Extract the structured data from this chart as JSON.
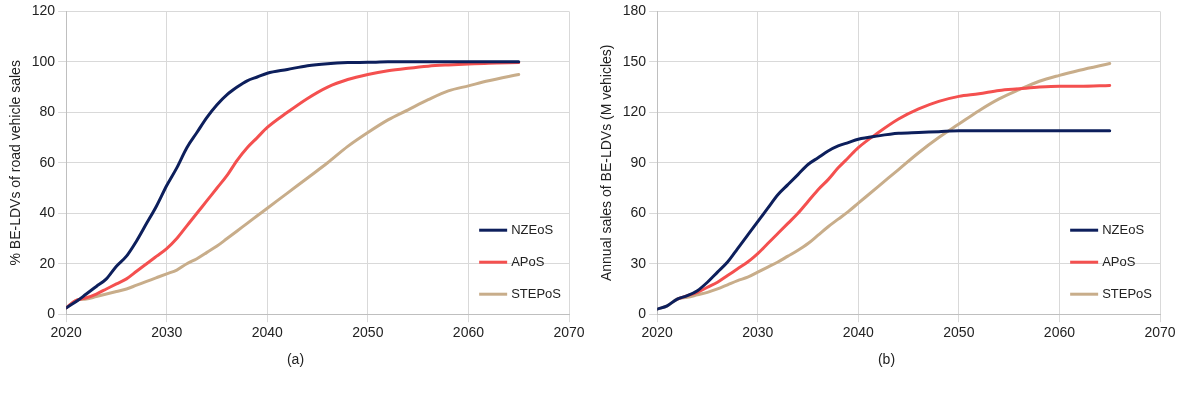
{
  "chart_data": [
    {
      "type": "line",
      "ylabel": "% BE-LDVs of road vehicle sales",
      "annotations": [
        "(a)"
      ],
      "x": [
        2020,
        2021,
        2022,
        2023,
        2024,
        2025,
        2026,
        2027,
        2028,
        2029,
        2030,
        2031,
        2032,
        2033,
        2034,
        2035,
        2036,
        2037,
        2038,
        2039,
        2040,
        2042,
        2044,
        2046,
        2048,
        2050,
        2052,
        2054,
        2056,
        2058,
        2060,
        2062,
        2065
      ],
      "series": [
        {
          "name": "NZEoS",
          "color": "#0d1f5c",
          "values": [
            2.5,
            5,
            8,
            11,
            14,
            19,
            23,
            29,
            36,
            43,
            51,
            58,
            66,
            72,
            78,
            83,
            87,
            90,
            92.5,
            94,
            95.5,
            97,
            98.5,
            99.3,
            99.7,
            99.8,
            100,
            100,
            100,
            100,
            100,
            100,
            100
          ]
        },
        {
          "name": "APoS",
          "color": "#f4504f",
          "values": [
            2.5,
            5.5,
            6.5,
            8,
            10,
            12,
            14,
            17,
            20,
            23,
            26,
            30,
            35,
            40,
            45,
            50,
            55,
            61,
            66,
            70,
            74,
            80,
            85.5,
            90,
            93,
            95,
            96.5,
            97.5,
            98.3,
            98.8,
            99.2,
            99.5,
            99.7
          ]
        },
        {
          "name": "STEPoS",
          "color": "#c8ad8a",
          "values": [
            2.5,
            5.5,
            6,
            7,
            8,
            9,
            10,
            11.5,
            13,
            14.5,
            16,
            17.5,
            20,
            22,
            24.5,
            27,
            30,
            33,
            36,
            39,
            42,
            48,
            54,
            60,
            66.5,
            72,
            77,
            81,
            85,
            88.5,
            90.5,
            92.5,
            95
          ]
        }
      ],
      "xlim": [
        2020,
        2070
      ],
      "xticks": [
        2020,
        2030,
        2040,
        2050,
        2060,
        2070
      ],
      "ylim": [
        0,
        120
      ],
      "yticks": [
        0,
        20,
        40,
        60,
        80,
        100,
        120
      ],
      "grid": true,
      "legend": "bottom right",
      "marker": "none",
      "line_style": "solid"
    },
    {
      "type": "line",
      "ylabel": "Annual sales of BE-LDVs (M vehicles)",
      "annotations": [
        "(b)"
      ],
      "x": [
        2020,
        2021,
        2022,
        2023,
        2024,
        2025,
        2026,
        2027,
        2028,
        2029,
        2030,
        2031,
        2032,
        2033,
        2034,
        2035,
        2036,
        2037,
        2038,
        2039,
        2040,
        2042,
        2044,
        2046,
        2048,
        2050,
        2052,
        2054,
        2056,
        2058,
        2060,
        2062,
        2065
      ],
      "series": [
        {
          "name": "NZEoS",
          "color": "#0d1f5c",
          "values": [
            3,
            5,
            9,
            11,
            14,
            19,
            25,
            31,
            39,
            47,
            55,
            63,
            71,
            77,
            83,
            89,
            93,
            97,
            100,
            102,
            104,
            106,
            107.5,
            108,
            108.5,
            109,
            109,
            109,
            109,
            109,
            109,
            109,
            109
          ]
        },
        {
          "name": "APoS",
          "color": "#f4504f",
          "values": [
            null,
            null,
            9,
            11,
            13,
            16,
            19,
            23,
            27,
            31,
            36,
            42,
            48,
            54,
            60,
            67,
            74,
            80,
            87,
            93,
            99,
            108,
            116,
            122,
            126.5,
            129.5,
            131,
            133,
            134,
            135,
            135.5,
            135.5,
            136
          ]
        },
        {
          "name": "STEPoS",
          "color": "#c8ad8a",
          "values": [
            3,
            5,
            9,
            10,
            11.5,
            13,
            15,
            17.5,
            20,
            22,
            25,
            28,
            31,
            34.5,
            38,
            42,
            47,
            52,
            56.5,
            61,
            66,
            76,
            86,
            96,
            105,
            113,
            121,
            128,
            133.5,
            138.5,
            142,
            145,
            149
          ]
        }
      ],
      "xlim": [
        2020,
        2070
      ],
      "xticks": [
        2020,
        2030,
        2040,
        2050,
        2060,
        2070
      ],
      "ylim": [
        0,
        180
      ],
      "yticks": [
        0,
        30,
        60,
        90,
        120,
        150,
        180
      ],
      "grid": true,
      "legend": "bottom right",
      "marker": "none",
      "line_style": "solid"
    }
  ]
}
